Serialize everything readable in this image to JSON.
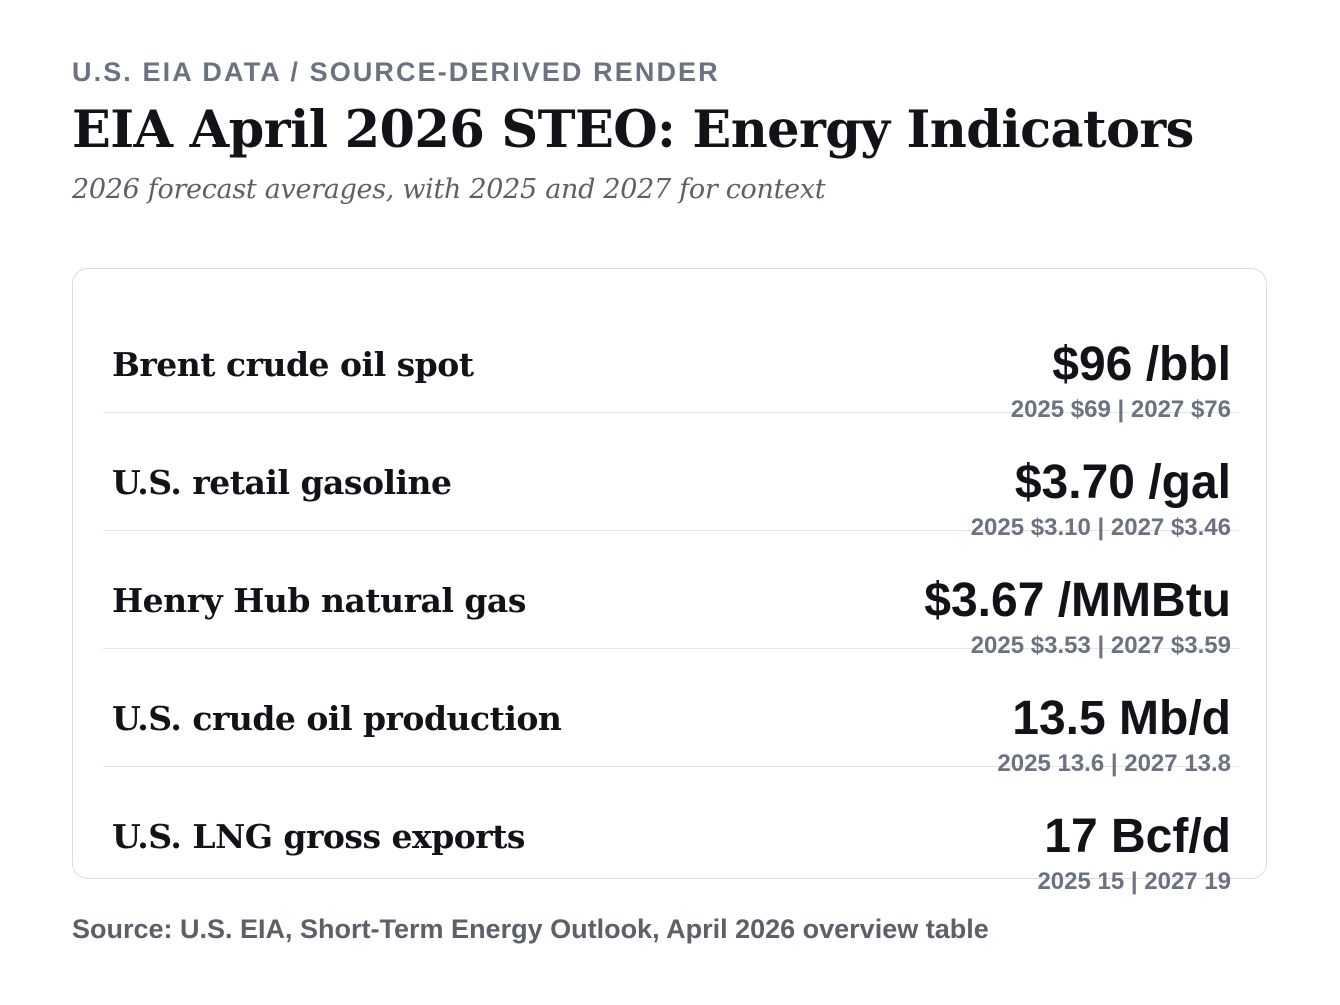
{
  "kicker": "U.S. EIA DATA / SOURCE-DERIVED RENDER",
  "title": "EIA April 2026 STEO: Energy Indicators",
  "subtitle": "2026 forecast averages, with 2025 and 2027 for context",
  "source": "Source: U.S. EIA, Short-Term Energy Outlook, April 2026 overview table",
  "colors": {
    "text": "#111318",
    "muted": "#6b7280",
    "border": "#d9dce1"
  },
  "chart_data": {
    "type": "table",
    "columns": [
      "indicator",
      "2026",
      "2025",
      "2027"
    ],
    "rows": [
      {
        "label": "Brent crude oil spot",
        "value_2026": 96,
        "value_2025": 69,
        "value_2027": 76,
        "unit": "/bbl",
        "display": "$96 /bbl",
        "context": "2025 $69 | 2027 $76"
      },
      {
        "label": "U.S. retail gasoline",
        "value_2026": 3.7,
        "value_2025": 3.1,
        "value_2027": 3.46,
        "unit": "/gal",
        "display": "$3.70 /gal",
        "context": "2025 $3.10 | 2027 $3.46"
      },
      {
        "label": "Henry Hub natural gas",
        "value_2026": 3.67,
        "value_2025": 3.53,
        "value_2027": 3.59,
        "unit": "/MMBtu",
        "display": "$3.67 /MMBtu",
        "context": "2025 $3.53 | 2027 $3.59"
      },
      {
        "label": "U.S. crude oil production",
        "value_2026": 13.5,
        "value_2025": 13.6,
        "value_2027": 13.8,
        "unit": "Mb/d",
        "display": "13.5 Mb/d",
        "context": "2025 13.6 | 2027 13.8"
      },
      {
        "label": "U.S. LNG gross exports",
        "value_2026": 17,
        "value_2025": 15,
        "value_2027": 19,
        "unit": "Bcf/d",
        "display": "17 Bcf/d",
        "context": "2025 15 | 2027 19"
      }
    ]
  }
}
